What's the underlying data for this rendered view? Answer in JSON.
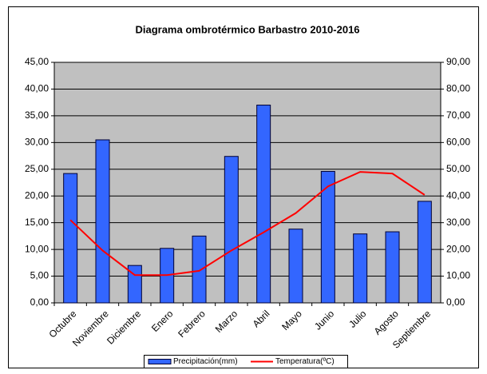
{
  "chart_data": {
    "type": "bar",
    "title": "Diagrama ombrotérmico Barbastro 2010-2016",
    "categories": [
      "Octubre",
      "Noviembre",
      "Diciembre",
      "Enero",
      "Febrero",
      "Marzo",
      "Abril",
      "Mayo",
      "Junio",
      "Julio",
      "Agosto",
      "Septiembre"
    ],
    "series": [
      {
        "name": "Precipitación(mm)",
        "type": "bar",
        "axis": "y2",
        "color": "#3366ff",
        "values": [
          48.4,
          61,
          14,
          20.4,
          25,
          54.8,
          74,
          27.6,
          49.2,
          25.8,
          26.6,
          38
        ]
      },
      {
        "name": "Temperatura(ºC)",
        "type": "line",
        "color": "#ff0000",
        "values": [
          15.5,
          9.8,
          5.2,
          5.2,
          6,
          9.8,
          13.2,
          16.8,
          21.8,
          24.5,
          24.2,
          20.2
        ]
      }
    ],
    "ylim": [
      0,
      45
    ],
    "yticks": [
      {
        "value": 0,
        "label": "0,00"
      },
      {
        "value": 5,
        "label": "5,00"
      },
      {
        "value": 10,
        "label": "10,00"
      },
      {
        "value": 15,
        "label": "15,00"
      },
      {
        "value": 20,
        "label": "20,00"
      },
      {
        "value": 25,
        "label": "25,00"
      },
      {
        "value": 30,
        "label": "30,00"
      },
      {
        "value": 35,
        "label": "35,00"
      },
      {
        "value": 40,
        "label": "40,00"
      },
      {
        "value": 45,
        "label": "45,00"
      }
    ],
    "y2lim": [
      0,
      90
    ],
    "y2ticks": [
      {
        "value": 0,
        "label": "0,00"
      },
      {
        "value": 10,
        "label": "10,00"
      },
      {
        "value": 20,
        "label": "20,00"
      },
      {
        "value": 30,
        "label": "30,00"
      },
      {
        "value": 40,
        "label": "40,00"
      },
      {
        "value": 50,
        "label": "50,00"
      },
      {
        "value": 60,
        "label": "60,00"
      },
      {
        "value": 70,
        "label": "70,00"
      },
      {
        "value": 80,
        "label": "80,00"
      },
      {
        "value": 90,
        "label": "90,00"
      }
    ],
    "grid": true,
    "legend": "bottom"
  }
}
